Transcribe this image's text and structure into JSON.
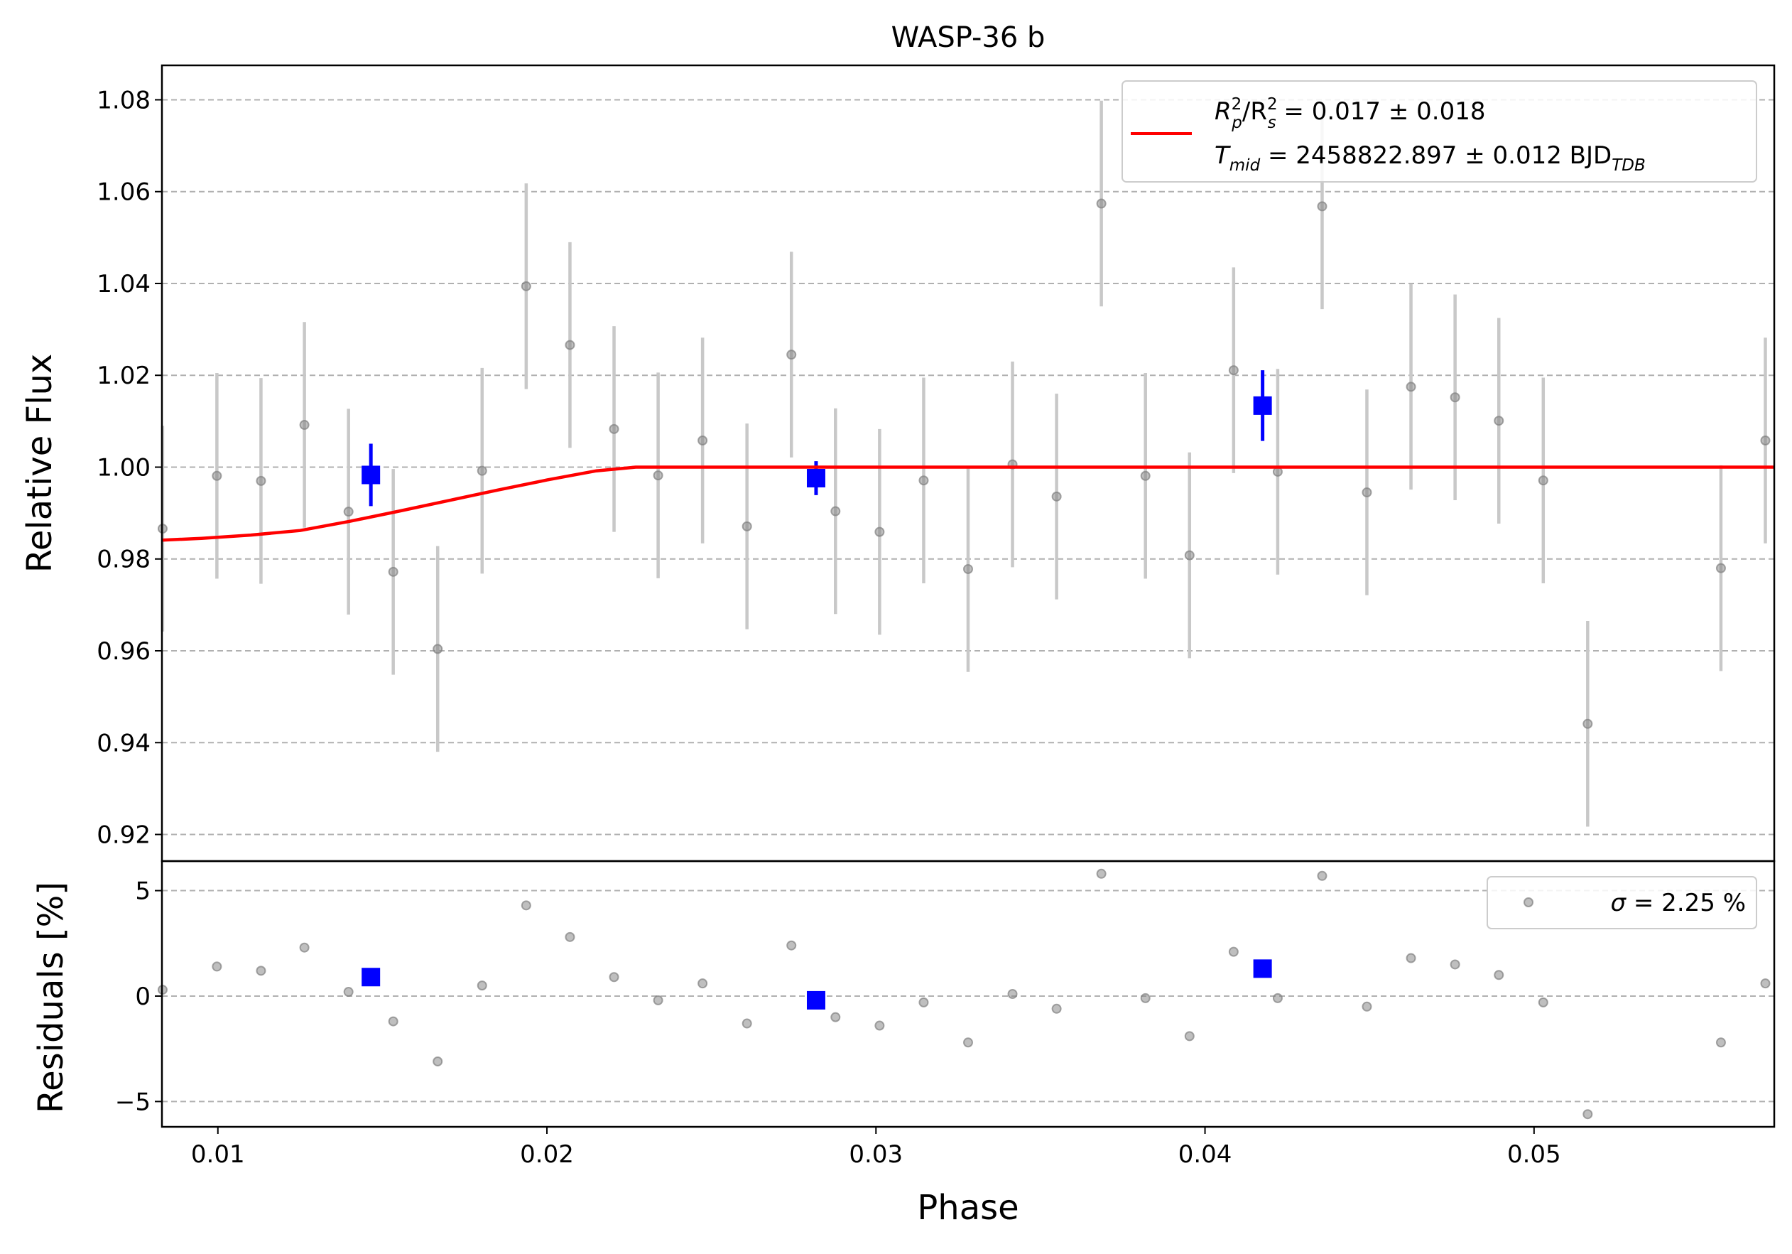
{
  "chart_data": [
    {
      "type": "scatter",
      "title": "WASP-36 b",
      "xlabel": "",
      "ylabel": "Relative Flux",
      "xlim": [
        0.0083,
        0.0573
      ],
      "ylim": [
        0.9142,
        1.0875
      ],
      "yticks": [
        0.92,
        0.94,
        0.96,
        0.98,
        1.0,
        1.02,
        1.04,
        1.06,
        1.08
      ],
      "ytick_labels": [
        "0.92",
        "0.94",
        "0.96",
        "0.98",
        "1.00",
        "1.02",
        "1.04",
        "1.06",
        "1.08"
      ],
      "grid": "horizontal dashed",
      "legend_position": "top-right",
      "legend": {
        "model_ratio": {
          "lead": "R",
          "sub1": "p",
          "sup1": "2",
          "mid": "/R",
          "sub2": "s",
          "sup2": "2",
          "rest": " = 0.017 ± 0.018"
        },
        "model_tmid": {
          "lead": "T",
          "sub1": "mid",
          "rest": " = 2458822.897 ± 0.012 BJD",
          "sub2": "TDB"
        }
      },
      "series": [
        {
          "kind": "data",
          "color": "#808080",
          "x": [
            0.00832,
            0.00997,
            0.01131,
            0.01263,
            0.01397,
            0.01533,
            0.01668,
            0.01803,
            0.01937,
            0.0207,
            0.02204,
            0.02338,
            0.02473,
            0.02608,
            0.02743,
            0.02877,
            0.03011,
            0.03145,
            0.0328,
            0.03415,
            0.03549,
            0.03685,
            0.03819,
            0.03953,
            0.04087,
            0.04221,
            0.04356,
            0.04492,
            0.04626,
            0.0476,
            0.04893,
            0.05028,
            0.05163,
            0.05568,
            0.05703
          ],
          "y": [
            0.9866,
            0.9981,
            0.997,
            1.0092,
            0.9903,
            0.9772,
            0.9604,
            0.9992,
            1.0394,
            1.0266,
            1.0083,
            0.9982,
            1.0058,
            0.9871,
            1.0245,
            0.9904,
            0.9859,
            0.9971,
            0.9778,
            1.0006,
            0.9936,
            1.0574,
            0.9981,
            0.9808,
            1.0211,
            0.999,
            1.0568,
            0.9945,
            1.0175,
            1.0152,
            1.0101,
            0.9971,
            0.9441,
            0.978,
            1.0058
          ],
          "yerr": 0.0224
        },
        {
          "kind": "binned",
          "color": "#0000ff",
          "x": [
            0.01465,
            0.02818,
            0.04175
          ],
          "y": [
            0.9983,
            0.9976,
            1.0134
          ],
          "yerr": [
            0.0068,
            0.0037,
            0.0077
          ]
        },
        {
          "kind": "model",
          "color": "#ff0000",
          "x": [
            0.0083,
            0.0095,
            0.011,
            0.0125,
            0.014,
            0.0155,
            0.017,
            0.0185,
            0.02,
            0.0215,
            0.0227,
            0.0573
          ],
          "y": [
            0.9841,
            0.9845,
            0.9852,
            0.9862,
            0.9882,
            0.9904,
            0.9927,
            0.995,
            0.9972,
            0.9992,
            1.0,
            1.0
          ]
        }
      ]
    },
    {
      "type": "scatter",
      "title": "",
      "xlabel": "Phase",
      "ylabel": "Residuals [%]",
      "xlim": [
        0.0083,
        0.0573
      ],
      "ylim": [
        -6.2,
        6.4
      ],
      "yticks": [
        -5,
        0,
        5
      ],
      "ytick_labels": [
        "−5",
        "0",
        "5"
      ],
      "xticks": [
        0.01,
        0.02,
        0.03,
        0.04,
        0.05
      ],
      "xtick_labels": [
        "0.01",
        "0.02",
        "0.03",
        "0.04",
        "0.05"
      ],
      "grid": "horizontal dashed",
      "legend_position": "top-right",
      "legend": {
        "sigma_symbol": "σ",
        "sigma_rest": " = 2.25 %"
      },
      "series": [
        {
          "kind": "data",
          "color": "#808080",
          "x": [
            0.00832,
            0.00997,
            0.01131,
            0.01263,
            0.01397,
            0.01533,
            0.01668,
            0.01803,
            0.01937,
            0.0207,
            0.02204,
            0.02338,
            0.02473,
            0.02608,
            0.02743,
            0.02877,
            0.03011,
            0.03145,
            0.0328,
            0.03415,
            0.03549,
            0.03685,
            0.03819,
            0.03953,
            0.04087,
            0.04221,
            0.04356,
            0.04492,
            0.04626,
            0.0476,
            0.04893,
            0.05028,
            0.05163,
            0.05568,
            0.05703
          ],
          "y": [
            0.3,
            1.4,
            1.2,
            2.3,
            0.2,
            -1.2,
            -3.1,
            0.5,
            4.3,
            2.8,
            0.9,
            -0.2,
            0.6,
            -1.3,
            2.4,
            -1.0,
            -1.4,
            -0.3,
            -2.2,
            0.1,
            -0.6,
            5.8,
            -0.1,
            -1.9,
            2.1,
            -0.1,
            5.7,
            -0.5,
            1.8,
            1.5,
            1.0,
            -0.3,
            -5.6,
            -2.2,
            0.6
          ]
        },
        {
          "kind": "binned",
          "color": "#0000ff",
          "x": [
            0.01465,
            0.02818,
            0.04175
          ],
          "y": [
            0.9,
            -0.2,
            1.3
          ]
        }
      ]
    }
  ]
}
